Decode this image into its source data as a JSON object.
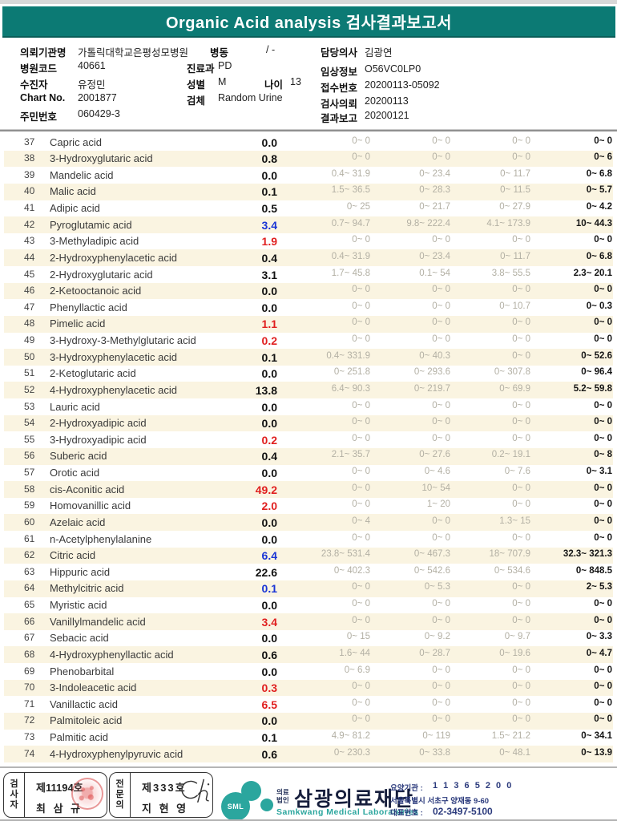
{
  "header": {
    "title": "Organic Acid analysis 검사결과보고서"
  },
  "patient": {
    "org_label": "의뢰기관명",
    "org_value": "가톨릭대학교은평성모병원",
    "ward_label": "병동",
    "ward_value": "/ -",
    "hospital_code_label": "병원코드",
    "hospital_code": "40661",
    "dept_label": "진료과",
    "dept": "PD",
    "patient_label": "수진자",
    "patient_name": "유정민",
    "sex_label": "성별",
    "sex": "M",
    "age_label": "나이",
    "age": "13",
    "chart_label": "Chart No.",
    "chart_no": "2001877",
    "specimen_label": "검체",
    "specimen": "Random Urine",
    "resident_label": "주민번호",
    "resident_no": "060429-3",
    "doctor_label": "담당의사",
    "doctor": "김광연",
    "clinical_label": "임상정보",
    "clinical": "O56VC0LP0",
    "receipt_label": "접수번호",
    "receipt_no": "20200113-05092",
    "request_label": "검사의뢰",
    "request_date": "20200113",
    "report_label": "결과보고",
    "report_date": "20200121"
  },
  "table": {
    "rows": [
      {
        "no": 37,
        "name": "Capric acid",
        "value": "0.0",
        "flag": "normal",
        "ranges": [
          "0~ 0",
          "0~ 0",
          "0~ 0",
          "0~ 0"
        ]
      },
      {
        "no": 38,
        "name": "3-Hydroxyglutaric acid",
        "value": "0.8",
        "flag": "normal",
        "ranges": [
          "0~ 0",
          "0~ 0",
          "0~ 0",
          "0~ 6"
        ]
      },
      {
        "no": 39,
        "name": "Mandelic acid",
        "value": "0.0",
        "flag": "normal",
        "ranges": [
          "0.4~ 31.9",
          "0~ 23.4",
          "0~ 11.7",
          "0~ 6.8"
        ]
      },
      {
        "no": 40,
        "name": "Malic acid",
        "value": "0.1",
        "flag": "normal",
        "ranges": [
          "1.5~ 36.5",
          "0~ 28.3",
          "0~ 11.5",
          "0~ 5.7"
        ]
      },
      {
        "no": 41,
        "name": "Adipic acid",
        "value": "0.5",
        "flag": "normal",
        "ranges": [
          "0~ 25",
          "0~ 21.7",
          "0~ 27.9",
          "0~ 4.2"
        ]
      },
      {
        "no": 42,
        "name": "Pyroglutamic acid",
        "value": "3.4",
        "flag": "low",
        "ranges": [
          "0.7~ 94.7",
          "9.8~ 222.4",
          "4.1~ 173.9",
          "10~ 44.3"
        ]
      },
      {
        "no": 43,
        "name": "3-Methyladipic acid",
        "value": "1.9",
        "flag": "high",
        "ranges": [
          "0~ 0",
          "0~ 0",
          "0~ 0",
          "0~ 0"
        ]
      },
      {
        "no": 44,
        "name": "2-Hydroxyphenylacetic acid",
        "value": "0.4",
        "flag": "normal",
        "ranges": [
          "0.4~ 31.9",
          "0~ 23.4",
          "0~ 11.7",
          "0~ 6.8"
        ]
      },
      {
        "no": 45,
        "name": "2-Hydroxyglutaric acid",
        "value": "3.1",
        "flag": "normal",
        "ranges": [
          "1.7~ 45.8",
          "0.1~ 54",
          "3.8~ 55.5",
          "2.3~ 20.1"
        ]
      },
      {
        "no": 46,
        "name": "2-Ketooctanoic acid",
        "value": "0.0",
        "flag": "normal",
        "ranges": [
          "0~ 0",
          "0~ 0",
          "0~ 0",
          "0~ 0"
        ]
      },
      {
        "no": 47,
        "name": "Phenyllactic acid",
        "value": "0.0",
        "flag": "normal",
        "ranges": [
          "0~ 0",
          "0~ 0",
          "0~ 10.7",
          "0~ 0.3"
        ]
      },
      {
        "no": 48,
        "name": "Pimelic acid",
        "value": "1.1",
        "flag": "high",
        "ranges": [
          "0~ 0",
          "0~ 0",
          "0~ 0",
          "0~ 0"
        ]
      },
      {
        "no": 49,
        "name": "3-Hydroxy-3-Methylglutaric acid",
        "value": "0.2",
        "flag": "high",
        "ranges": [
          "0~ 0",
          "0~ 0",
          "0~ 0",
          "0~ 0"
        ]
      },
      {
        "no": 50,
        "name": "3-Hydroxyphenylacetic acid",
        "value": "0.1",
        "flag": "normal",
        "ranges": [
          "0.4~ 331.9",
          "0~ 40.3",
          "0~ 0",
          "0~ 52.6"
        ]
      },
      {
        "no": 51,
        "name": "2-Ketoglutaric acid",
        "value": "0.0",
        "flag": "normal",
        "ranges": [
          "0~ 251.8",
          "0~ 293.6",
          "0~ 307.8",
          "0~ 96.4"
        ]
      },
      {
        "no": 52,
        "name": "4-Hydroxyphenylacetic acid",
        "value": "13.8",
        "flag": "normal",
        "ranges": [
          "6.4~ 90.3",
          "0~ 219.7",
          "0~ 69.9",
          "5.2~ 59.8"
        ]
      },
      {
        "no": 53,
        "name": "Lauric acid",
        "value": "0.0",
        "flag": "normal",
        "ranges": [
          "0~ 0",
          "0~ 0",
          "0~ 0",
          "0~ 0"
        ]
      },
      {
        "no": 54,
        "name": "2-Hydroxyadipic acid",
        "value": "0.0",
        "flag": "normal",
        "ranges": [
          "0~ 0",
          "0~ 0",
          "0~ 0",
          "0~ 0"
        ]
      },
      {
        "no": 55,
        "name": "3-Hydroxyadipic acid",
        "value": "0.2",
        "flag": "high",
        "ranges": [
          "0~ 0",
          "0~ 0",
          "0~ 0",
          "0~ 0"
        ]
      },
      {
        "no": 56,
        "name": "Suberic acid",
        "value": "0.4",
        "flag": "normal",
        "ranges": [
          "2.1~ 35.7",
          "0~ 27.6",
          "0.2~ 19.1",
          "0~ 8"
        ]
      },
      {
        "no": 57,
        "name": "Orotic acid",
        "value": "0.0",
        "flag": "normal",
        "ranges": [
          "0~ 0",
          "0~ 4.6",
          "0~ 7.6",
          "0~ 3.1"
        ]
      },
      {
        "no": 58,
        "name": "cis-Aconitic acid",
        "value": "49.2",
        "flag": "high",
        "ranges": [
          "0~ 0",
          "10~ 54",
          "0~ 0",
          "0~ 0"
        ]
      },
      {
        "no": 59,
        "name": "Homovanillic acid",
        "value": "2.0",
        "flag": "high",
        "ranges": [
          "0~ 0",
          "1~ 20",
          "0~ 0",
          "0~ 0"
        ]
      },
      {
        "no": 60,
        "name": "Azelaic acid",
        "value": "0.0",
        "flag": "normal",
        "ranges": [
          "0~ 4",
          "0~ 0",
          "1.3~ 15",
          "0~ 0"
        ]
      },
      {
        "no": 61,
        "name": "n-Acetylphenylalanine",
        "value": "0.0",
        "flag": "normal",
        "ranges": [
          "0~ 0",
          "0~ 0",
          "0~ 0",
          "0~ 0"
        ]
      },
      {
        "no": 62,
        "name": "Citric acid",
        "value": "6.4",
        "flag": "low",
        "ranges": [
          "23.8~ 531.4",
          "0~ 467.3",
          "18~ 707.9",
          "32.3~ 321.3"
        ]
      },
      {
        "no": 63,
        "name": "Hippuric acid",
        "value": "22.6",
        "flag": "normal",
        "ranges": [
          "0~ 402.3",
          "0~ 542.6",
          "0~ 534.6",
          "0~ 848.5"
        ]
      },
      {
        "no": 64,
        "name": "Methylcitric acid",
        "value": "0.1",
        "flag": "low",
        "ranges": [
          "0~ 0",
          "0~ 5.3",
          "0~ 0",
          "2~ 5.3"
        ]
      },
      {
        "no": 65,
        "name": "Myristic acid",
        "value": "0.0",
        "flag": "normal",
        "ranges": [
          "0~ 0",
          "0~ 0",
          "0~ 0",
          "0~ 0"
        ]
      },
      {
        "no": 66,
        "name": "Vanillylmandelic acid",
        "value": "3.4",
        "flag": "high",
        "ranges": [
          "0~ 0",
          "0~ 0",
          "0~ 0",
          "0~ 0"
        ]
      },
      {
        "no": 67,
        "name": "Sebacic acid",
        "value": "0.0",
        "flag": "normal",
        "ranges": [
          "0~ 15",
          "0~ 9.2",
          "0~ 9.7",
          "0~ 3.3"
        ]
      },
      {
        "no": 68,
        "name": "4-Hydroxyphenyllactic acid",
        "value": "0.6",
        "flag": "normal",
        "ranges": [
          "1.6~ 44",
          "0~ 28.7",
          "0~ 19.6",
          "0~ 4.7"
        ]
      },
      {
        "no": 69,
        "name": "Phenobarbital",
        "value": "0.0",
        "flag": "normal",
        "ranges": [
          "0~ 6.9",
          "0~ 0",
          "0~ 0",
          "0~ 0"
        ]
      },
      {
        "no": 70,
        "name": "3-Indoleacetic acid",
        "value": "0.3",
        "flag": "high",
        "ranges": [
          "0~ 0",
          "0~ 0",
          "0~ 0",
          "0~ 0"
        ]
      },
      {
        "no": 71,
        "name": "Vanillactic acid",
        "value": "6.5",
        "flag": "high",
        "ranges": [
          "0~ 0",
          "0~ 0",
          "0~ 0",
          "0~ 0"
        ]
      },
      {
        "no": 72,
        "name": "Palmitoleic acid",
        "value": "0.0",
        "flag": "normal",
        "ranges": [
          "0~ 0",
          "0~ 0",
          "0~ 0",
          "0~ 0"
        ]
      },
      {
        "no": 73,
        "name": "Palmitic acid",
        "value": "0.1",
        "flag": "normal",
        "ranges": [
          "4.9~ 81.2",
          "0~ 119",
          "1.5~ 21.2",
          "0~ 34.1"
        ]
      },
      {
        "no": 74,
        "name": "4-Hydroxyphenylpyruvic acid",
        "value": "0.6",
        "flag": "normal",
        "ranges": [
          "0~ 230.3",
          "0~ 33.8",
          "0~ 48.1",
          "0~ 13.9"
        ]
      }
    ]
  },
  "footer": {
    "examiner": {
      "role": "검사자",
      "cert": "제11194호",
      "name": "최 삼 규"
    },
    "specialist": {
      "role": "전문의",
      "cert": "제333호",
      "name": "지 현 영"
    },
    "logo_text": "SML",
    "corp_prefix_1": "의료",
    "corp_prefix_2": "법인",
    "corp_name": "삼광의료재단",
    "corp_en": "Samkwang Medical Laboratories",
    "care_org_label": "요양기관 :",
    "care_org_no": "1 1 3 6 5 2 0 0",
    "address": "서울특별시 서초구 양재동 9-60",
    "phone_label": "대표번호 :",
    "phone": "02-3497-5100"
  },
  "colors": {
    "header_teal": "#0c7a74",
    "stripe_cream": "#faf4e1",
    "high_red": "#e01f1f",
    "low_blue": "#1a35d6",
    "range_gray": "#b3b0a4",
    "logo_teal": "#2ba69e",
    "navy": "#2b3a7c",
    "seal_red": "#d74646"
  }
}
